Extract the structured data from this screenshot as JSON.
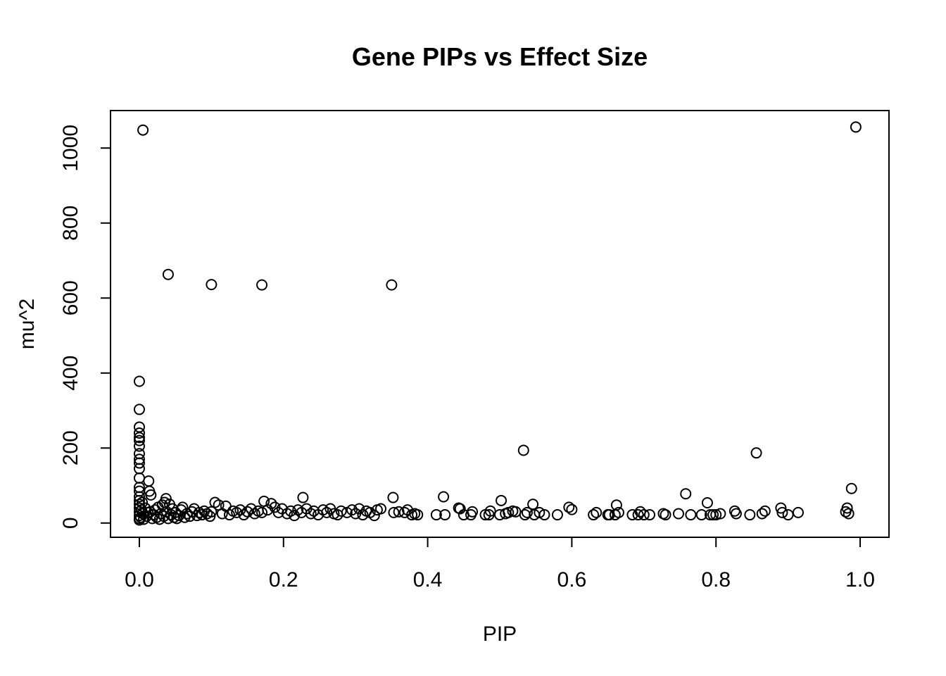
{
  "chart_data": {
    "type": "scatter",
    "title": "Gene PIPs vs Effect Size",
    "xlabel": "PIP",
    "ylabel": "mu^2",
    "xlim": [
      -0.04,
      1.04
    ],
    "ylim": [
      -38,
      1100
    ],
    "xticks": [
      0.0,
      0.2,
      0.4,
      0.6,
      0.8,
      1.0
    ],
    "xtick_labels": [
      "0.0",
      "0.2",
      "0.4",
      "0.6",
      "0.8",
      "1.0"
    ],
    "yticks": [
      0,
      200,
      400,
      600,
      800,
      1000
    ],
    "ytick_labels": [
      "0",
      "200",
      "400",
      "600",
      "800",
      "1000"
    ],
    "grid": false,
    "legend": "none",
    "marker": "open-circle",
    "colors": {
      "marker": "#000000",
      "background": "#ffffff"
    },
    "series": [
      {
        "points": [
          [
            0.005,
            1048
          ],
          [
            0.994,
            1056
          ],
          [
            0.04,
            663
          ],
          [
            0.1,
            636
          ],
          [
            0.17,
            635
          ],
          [
            0.35,
            635
          ],
          [
            0.0,
            378
          ],
          [
            0.0,
            303
          ],
          [
            0.0,
            256
          ],
          [
            0.0,
            240
          ],
          [
            0.0,
            228
          ],
          [
            0.0,
            220
          ],
          [
            0.0,
            205
          ],
          [
            0.0,
            185
          ],
          [
            0.0,
            170
          ],
          [
            0.0,
            160
          ],
          [
            0.0,
            145
          ],
          [
            0.0,
            120
          ],
          [
            0.0,
            95
          ],
          [
            0.0,
            85
          ],
          [
            0.0,
            70
          ],
          [
            0.0,
            60
          ],
          [
            0.0,
            50
          ],
          [
            0.0,
            40
          ],
          [
            0.0,
            30
          ],
          [
            0.0,
            20
          ],
          [
            0.0,
            12
          ],
          [
            0.0,
            8
          ],
          [
            0.002,
            15
          ],
          [
            0.003,
            35
          ],
          [
            0.004,
            55
          ],
          [
            0.005,
            25
          ],
          [
            0.006,
            10
          ],
          [
            0.008,
            40
          ],
          [
            0.01,
            18
          ],
          [
            0.012,
            28
          ],
          [
            0.013,
            112
          ],
          [
            0.014,
            85
          ],
          [
            0.015,
            30
          ],
          [
            0.016,
            75
          ],
          [
            0.018,
            12
          ],
          [
            0.02,
            22
          ],
          [
            0.022,
            35
          ],
          [
            0.024,
            15
          ],
          [
            0.026,
            42
          ],
          [
            0.028,
            10
          ],
          [
            0.03,
            25
          ],
          [
            0.032,
            48
          ],
          [
            0.034,
            18
          ],
          [
            0.035,
            55
          ],
          [
            0.037,
            65
          ],
          [
            0.038,
            30
          ],
          [
            0.04,
            12
          ],
          [
            0.042,
            50
          ],
          [
            0.044,
            22
          ],
          [
            0.046,
            38
          ],
          [
            0.048,
            15
          ],
          [
            0.05,
            28
          ],
          [
            0.052,
            12
          ],
          [
            0.055,
            20
          ],
          [
            0.058,
            35
          ],
          [
            0.06,
            42
          ],
          [
            0.063,
            15
          ],
          [
            0.066,
            25
          ],
          [
            0.07,
            18
          ],
          [
            0.073,
            30
          ],
          [
            0.076,
            38
          ],
          [
            0.08,
            20
          ],
          [
            0.083,
            28
          ],
          [
            0.087,
            22
          ],
          [
            0.09,
            32
          ],
          [
            0.094,
            25
          ],
          [
            0.098,
            18
          ],
          [
            0.1,
            30
          ],
          [
            0.105,
            55
          ],
          [
            0.11,
            48
          ],
          [
            0.115,
            25
          ],
          [
            0.12,
            45
          ],
          [
            0.125,
            22
          ],
          [
            0.13,
            32
          ],
          [
            0.135,
            28
          ],
          [
            0.14,
            35
          ],
          [
            0.145,
            22
          ],
          [
            0.15,
            30
          ],
          [
            0.155,
            38
          ],
          [
            0.16,
            25
          ],
          [
            0.165,
            32
          ],
          [
            0.17,
            28
          ],
          [
            0.173,
            58
          ],
          [
            0.178,
            35
          ],
          [
            0.183,
            52
          ],
          [
            0.188,
            42
          ],
          [
            0.193,
            28
          ],
          [
            0.198,
            38
          ],
          [
            0.205,
            25
          ],
          [
            0.21,
            32
          ],
          [
            0.215,
            20
          ],
          [
            0.22,
            35
          ],
          [
            0.225,
            28
          ],
          [
            0.227,
            68
          ],
          [
            0.232,
            38
          ],
          [
            0.238,
            25
          ],
          [
            0.242,
            32
          ],
          [
            0.248,
            22
          ],
          [
            0.255,
            35
          ],
          [
            0.26,
            28
          ],
          [
            0.265,
            38
          ],
          [
            0.27,
            25
          ],
          [
            0.275,
            22
          ],
          [
            0.28,
            32
          ],
          [
            0.288,
            28
          ],
          [
            0.295,
            35
          ],
          [
            0.3,
            25
          ],
          [
            0.305,
            38
          ],
          [
            0.31,
            22
          ],
          [
            0.315,
            32
          ],
          [
            0.32,
            28
          ],
          [
            0.326,
            20
          ],
          [
            0.33,
            35
          ],
          [
            0.335,
            38
          ],
          [
            0.352,
            68
          ],
          [
            0.353,
            28
          ],
          [
            0.36,
            30
          ],
          [
            0.368,
            28
          ],
          [
            0.372,
            35
          ],
          [
            0.378,
            22
          ],
          [
            0.382,
            25
          ],
          [
            0.386,
            22
          ],
          [
            0.412,
            22
          ],
          [
            0.422,
            70
          ],
          [
            0.424,
            22
          ],
          [
            0.443,
            40
          ],
          [
            0.445,
            38
          ],
          [
            0.45,
            22
          ],
          [
            0.46,
            22
          ],
          [
            0.462,
            30
          ],
          [
            0.48,
            22
          ],
          [
            0.485,
            22
          ],
          [
            0.487,
            32
          ],
          [
            0.5,
            22
          ],
          [
            0.502,
            60
          ],
          [
            0.508,
            25
          ],
          [
            0.512,
            28
          ],
          [
            0.518,
            32
          ],
          [
            0.522,
            30
          ],
          [
            0.533,
            194
          ],
          [
            0.535,
            22
          ],
          [
            0.538,
            28
          ],
          [
            0.546,
            50
          ],
          [
            0.548,
            22
          ],
          [
            0.555,
            28
          ],
          [
            0.562,
            22
          ],
          [
            0.58,
            22
          ],
          [
            0.596,
            42
          ],
          [
            0.6,
            36
          ],
          [
            0.63,
            22
          ],
          [
            0.634,
            28
          ],
          [
            0.65,
            22
          ],
          [
            0.652,
            22
          ],
          [
            0.66,
            22
          ],
          [
            0.662,
            48
          ],
          [
            0.665,
            28
          ],
          [
            0.684,
            22
          ],
          [
            0.692,
            22
          ],
          [
            0.695,
            30
          ],
          [
            0.7,
            22
          ],
          [
            0.708,
            22
          ],
          [
            0.727,
            25
          ],
          [
            0.73,
            22
          ],
          [
            0.748,
            25
          ],
          [
            0.758,
            78
          ],
          [
            0.765,
            22
          ],
          [
            0.78,
            22
          ],
          [
            0.788,
            54
          ],
          [
            0.792,
            22
          ],
          [
            0.796,
            22
          ],
          [
            0.8,
            22
          ],
          [
            0.806,
            25
          ],
          [
            0.826,
            32
          ],
          [
            0.828,
            25
          ],
          [
            0.847,
            22
          ],
          [
            0.856,
            187
          ],
          [
            0.864,
            25
          ],
          [
            0.868,
            32
          ],
          [
            0.89,
            40
          ],
          [
            0.892,
            28
          ],
          [
            0.9,
            22
          ],
          [
            0.914,
            28
          ],
          [
            0.98,
            30
          ],
          [
            0.982,
            40
          ],
          [
            0.984,
            25
          ],
          [
            0.988,
            92
          ]
        ]
      }
    ]
  }
}
